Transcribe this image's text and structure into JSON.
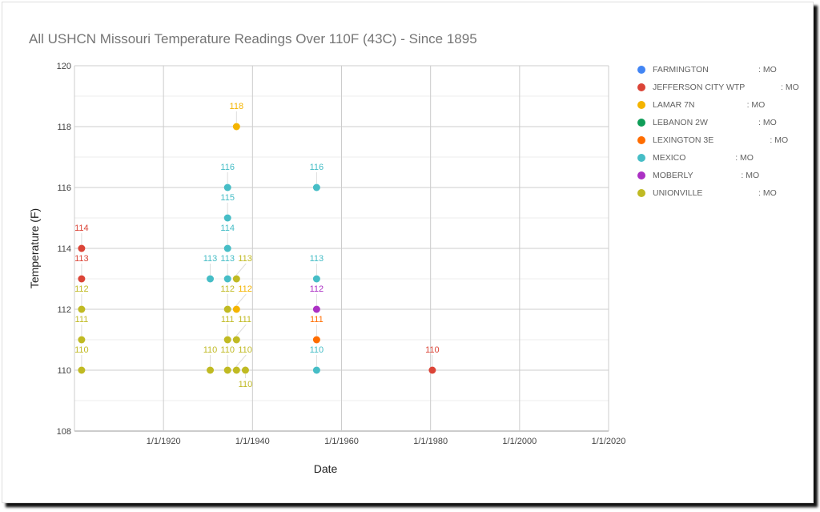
{
  "chart_data": {
    "type": "scatter",
    "title": "All USHCN Missouri Temperature Readings Over 110F (43C) - Since 1895",
    "xlabel": "Date",
    "ylabel": "Temperature (F)",
    "xlim": [
      1900,
      2020
    ],
    "ylim": [
      108,
      120
    ],
    "x_ticks": [
      "1/1/1920",
      "1/1/1940",
      "1/1/1960",
      "1/1/1980",
      "1/1/2000",
      "1/1/2020"
    ],
    "x_tick_values": [
      1920,
      1940,
      1960,
      1980,
      2000,
      2020
    ],
    "y_ticks": [
      108,
      110,
      112,
      114,
      116,
      118,
      120
    ],
    "legend_position": "right",
    "series": [
      {
        "name": "FARMINGTON",
        "suffix": ": MO",
        "color": "#4285f4",
        "points": []
      },
      {
        "name": "JEFFERSON CITY WTP",
        "suffix": ": MO",
        "color": "#db4437",
        "points": [
          [
            1901.6,
            114
          ],
          [
            1901.6,
            113
          ],
          [
            1980.4,
            110
          ]
        ]
      },
      {
        "name": "LAMAR 7N",
        "suffix": ": MO",
        "color": "#f4b400",
        "points": [
          [
            1936.4,
            118
          ],
          [
            1936.4,
            112
          ]
        ]
      },
      {
        "name": "LEBANON 2W",
        "suffix": ": MO",
        "color": "#0f9d58",
        "points": []
      },
      {
        "name": "LEXINGTON 3E",
        "suffix": ": MO",
        "color": "#ff6d00",
        "points": [
          [
            1954.4,
            111
          ]
        ]
      },
      {
        "name": "MEXICO",
        "suffix": ": MO",
        "color": "#46bdc6",
        "points": [
          [
            1930.5,
            113
          ],
          [
            1934.4,
            116
          ],
          [
            1934.4,
            115
          ],
          [
            1934.4,
            114
          ],
          [
            1934.4,
            113
          ],
          [
            1954.4,
            116
          ],
          [
            1954.4,
            113
          ],
          [
            1954.4,
            110
          ]
        ]
      },
      {
        "name": "MOBERLY",
        "suffix": ": MO",
        "color": "#ab30c4",
        "points": [
          [
            1954.4,
            112
          ]
        ]
      },
      {
        "name": "UNIONVILLE",
        "suffix": ": MO",
        "color": "#c0ba23",
        "points": [
          [
            1901.6,
            112
          ],
          [
            1901.6,
            111
          ],
          [
            1901.6,
            110
          ],
          [
            1930.5,
            110
          ],
          [
            1934.4,
            112
          ],
          [
            1934.4,
            111
          ],
          [
            1934.4,
            110
          ],
          [
            1936.4,
            113
          ],
          [
            1936.4,
            111
          ],
          [
            1936.4,
            110
          ],
          [
            1938.4,
            110
          ]
        ]
      }
    ]
  }
}
